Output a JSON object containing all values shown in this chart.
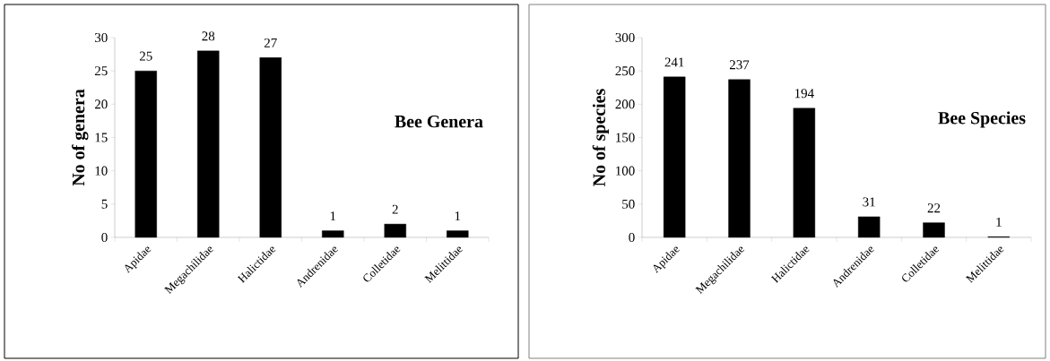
{
  "chart_data": [
    {
      "type": "bar",
      "title": "Bee Genera",
      "ylabel": "No of genera",
      "categories": [
        "Apidae",
        "Megachilidae",
        "Halictidae",
        "Andrenidae",
        "Colletidae",
        "Melittidae"
      ],
      "values": [
        25,
        28,
        27,
        1,
        2,
        1
      ],
      "color": "#000000",
      "ylim": [
        0,
        30
      ],
      "yticks": [
        0,
        5,
        10,
        15,
        20,
        25,
        30
      ],
      "data_labels": true,
      "grid": false
    },
    {
      "type": "bar",
      "title": "Bee Species",
      "ylabel": "No of species",
      "categories": [
        "Apidae",
        "Megachilidae",
        "Halictidae",
        "Andrenidae",
        "Colletidae",
        "Melittidae"
      ],
      "values": [
        241,
        237,
        194,
        31,
        22,
        1
      ],
      "color": "#000000",
      "ylim": [
        0,
        300
      ],
      "yticks": [
        0,
        50,
        100,
        150,
        200,
        250,
        300
      ],
      "data_labels": true,
      "grid": false
    }
  ]
}
